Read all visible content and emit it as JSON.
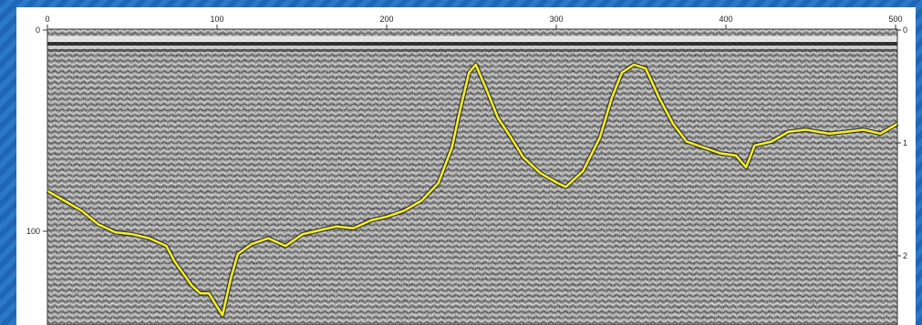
{
  "image": {
    "title": "",
    "top_axis_ticks": [
      "0",
      "100",
      "200",
      "300",
      "400",
      "500"
    ],
    "left_axis_ticks": [
      "0",
      "100"
    ],
    "right_axis_ticks": [
      "0",
      "1",
      "2"
    ],
    "colors": {
      "background": "#2c78c8",
      "panel": "#ffffff",
      "radargram_base": "#9a9a9a",
      "interface_line": "#f5ee2a",
      "interface_shadow": "#111111"
    },
    "interface_trace": {
      "x_range": [
        0,
        500
      ],
      "y_range": [
        0,
        150
      ],
      "points": [
        [
          0,
          82
        ],
        [
          10,
          87
        ],
        [
          20,
          92
        ],
        [
          30,
          99
        ],
        [
          40,
          103
        ],
        [
          50,
          104
        ],
        [
          60,
          106
        ],
        [
          70,
          110
        ],
        [
          75,
          118
        ],
        [
          80,
          124
        ],
        [
          85,
          130
        ],
        [
          90,
          134
        ],
        [
          95,
          134
        ],
        [
          100,
          141
        ],
        [
          103,
          145
        ],
        [
          108,
          126
        ],
        [
          112,
          114
        ],
        [
          120,
          109
        ],
        [
          130,
          106
        ],
        [
          140,
          110
        ],
        [
          150,
          104
        ],
        [
          160,
          102
        ],
        [
          170,
          100
        ],
        [
          180,
          101
        ],
        [
          190,
          97
        ],
        [
          200,
          95
        ],
        [
          210,
          92
        ],
        [
          220,
          87
        ],
        [
          230,
          78
        ],
        [
          238,
          60
        ],
        [
          243,
          40
        ],
        [
          248,
          22
        ],
        [
          252,
          18
        ],
        [
          258,
          30
        ],
        [
          265,
          45
        ],
        [
          272,
          54
        ],
        [
          280,
          65
        ],
        [
          290,
          73
        ],
        [
          300,
          78
        ],
        [
          305,
          80
        ],
        [
          315,
          72
        ],
        [
          325,
          55
        ],
        [
          332,
          35
        ],
        [
          338,
          22
        ],
        [
          345,
          18
        ],
        [
          352,
          20
        ],
        [
          360,
          35
        ],
        [
          368,
          48
        ],
        [
          376,
          57
        ],
        [
          386,
          60
        ],
        [
          396,
          63
        ],
        [
          405,
          64
        ],
        [
          411,
          70
        ],
        [
          416,
          59
        ],
        [
          426,
          57
        ],
        [
          436,
          52
        ],
        [
          446,
          51
        ],
        [
          460,
          53
        ],
        [
          470,
          52
        ],
        [
          480,
          51
        ],
        [
          490,
          53
        ],
        [
          500,
          48
        ]
      ]
    }
  }
}
